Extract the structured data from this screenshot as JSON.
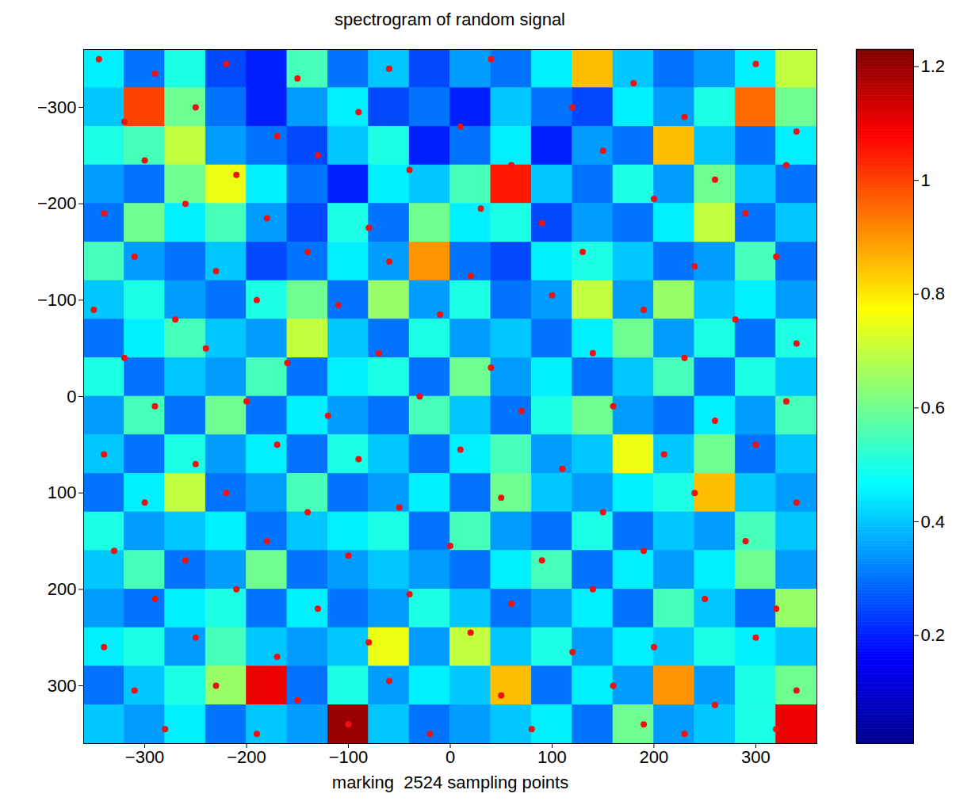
{
  "chart_data": {
    "type": "heatmap",
    "title": "spectrogram of random signal",
    "xlabel": "marking  2524 sampling points",
    "xlim": [
      -360,
      360
    ],
    "ylim": [
      -360,
      360
    ],
    "xticks": [
      -300,
      -200,
      -100,
      0,
      100,
      200,
      300
    ],
    "yticks": [
      -300,
      -200,
      -100,
      0,
      100,
      200,
      300
    ],
    "heatmap": {
      "x": [
        -340,
        -300,
        -260,
        -220,
        -180,
        -140,
        -100,
        -60,
        -20,
        20,
        60,
        100,
        140,
        180,
        220,
        260,
        300,
        340
      ],
      "y": [
        -340,
        -300,
        -260,
        -220,
        -180,
        -140,
        -100,
        -60,
        -20,
        20,
        60,
        100,
        140,
        180,
        220,
        260,
        300,
        340
      ],
      "values": [
        [
          0.45,
          0.3,
          0.5,
          0.25,
          0.2,
          0.55,
          0.3,
          0.4,
          0.25,
          0.35,
          0.3,
          0.45,
          0.85,
          0.4,
          0.3,
          0.35,
          0.45,
          0.7
        ],
        [
          0.4,
          1.0,
          0.6,
          0.3,
          0.2,
          0.35,
          0.45,
          0.25,
          0.3,
          0.2,
          0.4,
          0.3,
          0.25,
          0.45,
          0.35,
          0.5,
          0.95,
          0.6
        ],
        [
          0.5,
          0.55,
          0.7,
          0.35,
          0.3,
          0.25,
          0.4,
          0.5,
          0.2,
          0.3,
          0.45,
          0.2,
          0.35,
          0.3,
          0.85,
          0.4,
          0.3,
          0.45
        ],
        [
          0.35,
          0.3,
          0.6,
          0.75,
          0.45,
          0.3,
          0.2,
          0.45,
          0.4,
          0.55,
          1.05,
          0.4,
          0.3,
          0.5,
          0.35,
          0.6,
          0.4,
          0.3
        ],
        [
          0.3,
          0.6,
          0.45,
          0.55,
          0.35,
          0.25,
          0.5,
          0.3,
          0.6,
          0.45,
          0.5,
          0.25,
          0.35,
          0.3,
          0.45,
          0.7,
          0.3,
          0.4
        ],
        [
          0.55,
          0.35,
          0.3,
          0.4,
          0.25,
          0.3,
          0.45,
          0.35,
          0.9,
          0.3,
          0.25,
          0.45,
          0.5,
          0.4,
          0.3,
          0.35,
          0.55,
          0.3
        ],
        [
          0.4,
          0.5,
          0.35,
          0.3,
          0.5,
          0.6,
          0.3,
          0.65,
          0.35,
          0.5,
          0.3,
          0.35,
          0.7,
          0.35,
          0.65,
          0.4,
          0.45,
          0.35
        ],
        [
          0.3,
          0.45,
          0.55,
          0.4,
          0.35,
          0.7,
          0.4,
          0.3,
          0.5,
          0.35,
          0.4,
          0.3,
          0.45,
          0.6,
          0.35,
          0.5,
          0.3,
          0.5
        ],
        [
          0.5,
          0.3,
          0.4,
          0.35,
          0.55,
          0.3,
          0.45,
          0.5,
          0.3,
          0.6,
          0.35,
          0.45,
          0.3,
          0.4,
          0.55,
          0.3,
          0.5,
          0.4
        ],
        [
          0.35,
          0.55,
          0.3,
          0.6,
          0.3,
          0.45,
          0.35,
          0.3,
          0.55,
          0.4,
          0.3,
          0.5,
          0.6,
          0.35,
          0.3,
          0.45,
          0.35,
          0.55
        ],
        [
          0.4,
          0.3,
          0.5,
          0.35,
          0.45,
          0.3,
          0.5,
          0.4,
          0.3,
          0.45,
          0.55,
          0.35,
          0.4,
          0.75,
          0.4,
          0.6,
          0.3,
          0.4
        ],
        [
          0.3,
          0.45,
          0.7,
          0.3,
          0.35,
          0.55,
          0.3,
          0.35,
          0.45,
          0.3,
          0.6,
          0.4,
          0.35,
          0.45,
          0.5,
          0.85,
          0.4,
          0.35
        ],
        [
          0.5,
          0.35,
          0.4,
          0.45,
          0.3,
          0.4,
          0.45,
          0.5,
          0.3,
          0.55,
          0.35,
          0.3,
          0.5,
          0.3,
          0.4,
          0.35,
          0.55,
          0.4
        ],
        [
          0.4,
          0.55,
          0.3,
          0.35,
          0.6,
          0.3,
          0.35,
          0.4,
          0.35,
          0.3,
          0.45,
          0.55,
          0.3,
          0.45,
          0.35,
          0.45,
          0.6,
          0.35
        ],
        [
          0.35,
          0.3,
          0.45,
          0.5,
          0.3,
          0.45,
          0.3,
          0.35,
          0.5,
          0.4,
          0.3,
          0.35,
          0.45,
          0.3,
          0.55,
          0.4,
          0.3,
          0.65
        ],
        [
          0.45,
          0.5,
          0.35,
          0.55,
          0.4,
          0.35,
          0.4,
          0.75,
          0.35,
          0.7,
          0.4,
          0.5,
          0.35,
          0.45,
          0.4,
          0.5,
          0.45,
          0.4
        ],
        [
          0.3,
          0.4,
          0.5,
          0.65,
          1.1,
          0.3,
          0.5,
          0.35,
          0.45,
          0.4,
          0.85,
          0.3,
          0.45,
          0.35,
          0.9,
          0.35,
          0.5,
          0.6
        ],
        [
          0.4,
          0.35,
          0.45,
          0.3,
          0.4,
          0.35,
          1.2,
          0.4,
          0.3,
          0.35,
          0.4,
          0.45,
          0.3,
          0.6,
          0.35,
          0.4,
          0.5,
          1.1
        ]
      ]
    },
    "points": {
      "color": "#ee1111",
      "x": [
        -345,
        -290,
        -220,
        -150,
        -60,
        40,
        180,
        300,
        -320,
        -250,
        -170,
        -90,
        10,
        120,
        230,
        340,
        -300,
        -210,
        -130,
        -40,
        60,
        150,
        260,
        330,
        -340,
        -260,
        -180,
        -80,
        30,
        90,
        200,
        290,
        -310,
        -230,
        -140,
        -60,
        20,
        130,
        240,
        320,
        -350,
        -270,
        -190,
        -110,
        -10,
        100,
        190,
        280,
        -320,
        -240,
        -160,
        -70,
        40,
        140,
        230,
        340,
        -290,
        -200,
        -120,
        -30,
        70,
        160,
        260,
        330,
        -340,
        -250,
        -170,
        -90,
        10,
        110,
        210,
        300,
        -300,
        -220,
        -140,
        -50,
        50,
        150,
        240,
        340,
        -330,
        -260,
        -180,
        -100,
        0,
        90,
        190,
        290,
        -290,
        -210,
        -130,
        -40,
        60,
        140,
        250,
        320,
        -340,
        -250,
        -170,
        -80,
        20,
        120,
        200,
        300,
        -310,
        -230,
        -150,
        -60,
        50,
        160,
        260,
        340,
        -280,
        -190,
        -100,
        -20,
        80,
        190,
        230,
        320
      ],
      "y": [
        -350,
        -335,
        -345,
        -330,
        -340,
        -350,
        -325,
        -345,
        -285,
        -300,
        -270,
        -295,
        -280,
        -300,
        -290,
        -275,
        -245,
        -230,
        -250,
        -235,
        -240,
        -255,
        -225,
        -240,
        -190,
        -200,
        -185,
        -175,
        -195,
        -180,
        -205,
        -190,
        -145,
        -130,
        -150,
        -140,
        -125,
        -150,
        -135,
        -145,
        -90,
        -80,
        -100,
        -95,
        -85,
        -105,
        -90,
        -80,
        -40,
        -50,
        -35,
        -45,
        -30,
        -45,
        -40,
        -55,
        10,
        5,
        20,
        0,
        15,
        10,
        25,
        5,
        60,
        70,
        50,
        65,
        55,
        75,
        60,
        50,
        110,
        100,
        120,
        115,
        105,
        120,
        100,
        110,
        160,
        170,
        150,
        165,
        155,
        170,
        160,
        150,
        210,
        200,
        220,
        205,
        215,
        200,
        210,
        220,
        260,
        250,
        270,
        255,
        245,
        265,
        260,
        250,
        305,
        300,
        315,
        295,
        310,
        300,
        320,
        305,
        345,
        350,
        340,
        350,
        345,
        340,
        350,
        345
      ]
    },
    "colorbar": {
      "range": [
        0.01,
        1.23
      ],
      "ticks": [
        0.2,
        0.4,
        0.6,
        0.8,
        1,
        1.2
      ]
    }
  }
}
